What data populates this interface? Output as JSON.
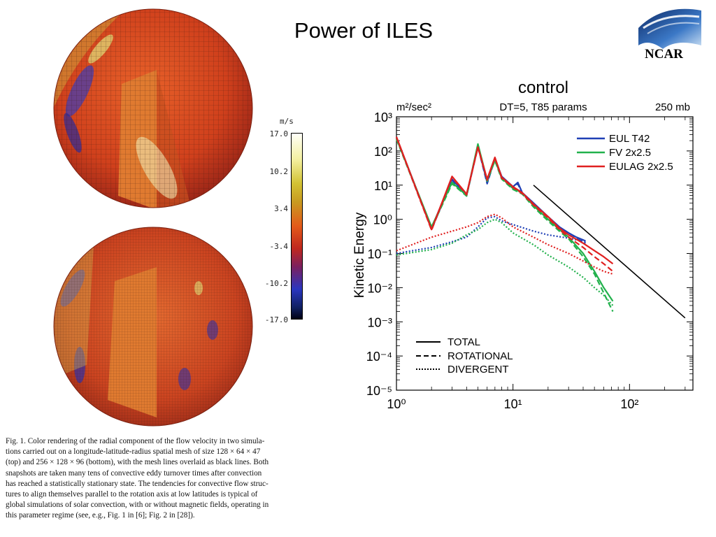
{
  "slide": {
    "title": "Power of ILES",
    "logo_text": "NCAR"
  },
  "colorbar": {
    "unit": "m/s",
    "ticks": [
      "17.0",
      "10.2",
      "3.4",
      "-3.4",
      "-10.2",
      "-17.0"
    ]
  },
  "caption": {
    "lines": [
      "Fig. 1. Color rendering of the radial component of the flow velocity in two simula-",
      "tions carried out on a longitude-latitude-radius spatial mesh of size 128 × 64 × 47",
      "(top) and 256 × 128 × 96 (bottom), with the mesh lines overlaid as black lines. Both",
      "snapshots are taken many tens of convective eddy turnover times after convection",
      "has reached a statistically stationary state. The tendencies for convective flow struc-",
      "tures to align themselves parallel to the rotation axis at low latitudes is typical of",
      "global simulations of solar convection, with or without magnetic fields, operating in",
      "this parameter regime (see, e.g., Fig. 1 in [6]; Fig. 2 in [28])."
    ]
  },
  "chart_data": {
    "type": "line",
    "title": "control",
    "subtitle_left": "m²/sec²",
    "subtitle_center": "DT=5, T85 params",
    "subtitle_right": "250 mb",
    "ylabel": "Kinetic Energy",
    "xscale": "log",
    "yscale": "log",
    "xlim": [
      1,
      350
    ],
    "ylim": [
      1e-05,
      1000
    ],
    "x_tick_labels": [
      "10⁰",
      "10¹",
      "10²"
    ],
    "y_tick_labels": [
      "10⁻⁵",
      "10⁻⁴",
      "10⁻³",
      "10⁻²",
      "10⁻¹",
      "10⁰",
      "10¹",
      "10²",
      "10³"
    ],
    "legend_colors": [
      {
        "name": "EUL T42",
        "color": "#1f3fb5"
      },
      {
        "name": "FV 2x2.5",
        "color": "#22b14c"
      },
      {
        "name": "EULAG 2x2.5",
        "color": "#e02020"
      }
    ],
    "legend_styles": [
      {
        "name": "TOTAL",
        "dash": "solid"
      },
      {
        "name": "ROTATIONAL",
        "dash": "dashed"
      },
      {
        "name": "DIVERGENT",
        "dash": "dotted"
      }
    ],
    "series": [
      {
        "model": "EUL T42",
        "component": "TOTAL",
        "color": "#1f3fb5",
        "dash": "solid",
        "x": [
          1,
          2,
          3,
          4,
          5,
          6,
          7,
          8,
          10,
          11,
          12,
          15,
          20,
          25,
          30,
          35,
          40,
          42
        ],
        "y": [
          250,
          0.55,
          15,
          5,
          140,
          12,
          60,
          18,
          9,
          12,
          6,
          3,
          1.2,
          0.6,
          0.4,
          0.3,
          0.25,
          0.23
        ]
      },
      {
        "model": "EUL T42",
        "component": "ROTATIONAL",
        "color": "#1f3fb5",
        "dash": "dashed",
        "x": [
          1,
          2,
          3,
          4,
          5,
          6,
          7,
          8,
          10,
          11,
          12,
          15,
          20,
          25,
          30,
          35,
          40,
          42
        ],
        "y": [
          240,
          0.5,
          14,
          4.8,
          135,
          11,
          58,
          17,
          8.5,
          11,
          5.5,
          2.8,
          1.1,
          0.55,
          0.35,
          0.27,
          0.22,
          0.2
        ]
      },
      {
        "model": "EUL T42",
        "component": "DIVERGENT",
        "color": "#1f3fb5",
        "dash": "dotted",
        "x": [
          1,
          2,
          3,
          4,
          5,
          6,
          7,
          8,
          10,
          15,
          20,
          30,
          42
        ],
        "y": [
          0.1,
          0.15,
          0.22,
          0.3,
          0.6,
          1.1,
          1.2,
          0.9,
          0.7,
          0.45,
          0.35,
          0.28,
          0.22
        ]
      },
      {
        "model": "FV 2x2.5",
        "component": "TOTAL",
        "color": "#22b14c",
        "dash": "solid",
        "x": [
          1,
          2,
          3,
          4,
          5,
          6,
          7,
          8,
          10,
          12,
          15,
          20,
          25,
          30,
          40,
          50,
          60,
          72
        ],
        "y": [
          230,
          0.6,
          12,
          5,
          160,
          14,
          55,
          16,
          8,
          6,
          2.5,
          1,
          0.5,
          0.3,
          0.1,
          0.03,
          0.01,
          0.004
        ]
      },
      {
        "model": "FV 2x2.5",
        "component": "ROTATIONAL",
        "color": "#22b14c",
        "dash": "dashed",
        "x": [
          1,
          2,
          3,
          4,
          5,
          6,
          7,
          8,
          10,
          12,
          15,
          20,
          25,
          30,
          40,
          50,
          60,
          72
        ],
        "y": [
          220,
          0.55,
          11,
          4.8,
          155,
          13,
          52,
          15,
          7.5,
          5.5,
          2.3,
          0.9,
          0.45,
          0.27,
          0.08,
          0.025,
          0.007,
          0.002
        ]
      },
      {
        "model": "FV 2x2.5",
        "component": "DIVERGENT",
        "color": "#22b14c",
        "dash": "dotted",
        "x": [
          1,
          2,
          3,
          4,
          5,
          6,
          7,
          8,
          10,
          15,
          20,
          30,
          40,
          50,
          60,
          72
        ],
        "y": [
          0.09,
          0.13,
          0.2,
          0.35,
          0.5,
          0.8,
          1.0,
          0.8,
          0.4,
          0.18,
          0.09,
          0.04,
          0.02,
          0.01,
          0.006,
          0.003
        ]
      },
      {
        "model": "EULAG 2x2.5",
        "component": "TOTAL",
        "color": "#e02020",
        "dash": "solid",
        "x": [
          1,
          2,
          3,
          4,
          5,
          6,
          7,
          8,
          10,
          12,
          15,
          20,
          25,
          30,
          40,
          50,
          60,
          72
        ],
        "y": [
          260,
          0.5,
          18,
          5.5,
          130,
          15,
          65,
          17,
          9,
          6,
          2.8,
          1.2,
          0.55,
          0.35,
          0.2,
          0.12,
          0.08,
          0.05
        ]
      },
      {
        "model": "EULAG 2x2.5",
        "component": "ROTATIONAL",
        "color": "#e02020",
        "dash": "dashed",
        "x": [
          1,
          2,
          3,
          4,
          5,
          6,
          7,
          8,
          10,
          12,
          15,
          20,
          25,
          30,
          40,
          50,
          60,
          72
        ],
        "y": [
          250,
          0.48,
          17,
          5.2,
          125,
          14,
          62,
          16,
          8.5,
          5.7,
          2.6,
          1.1,
          0.5,
          0.3,
          0.15,
          0.08,
          0.05,
          0.03
        ]
      },
      {
        "model": "EULAG 2x2.5",
        "component": "DIVERGENT",
        "color": "#e02020",
        "dash": "dotted",
        "x": [
          1,
          2,
          3,
          4,
          5,
          6,
          7,
          8,
          10,
          15,
          20,
          30,
          40,
          50,
          60,
          72
        ],
        "y": [
          0.12,
          0.3,
          0.45,
          0.6,
          0.8,
          1.2,
          1.4,
          1.1,
          0.6,
          0.3,
          0.18,
          0.1,
          0.06,
          0.04,
          0.03,
          0.025
        ]
      },
      {
        "model": "",
        "component": "reference slope",
        "color": "#000000",
        "dash": "solid",
        "x": [
          15,
          300
        ],
        "y": [
          10,
          0.0013
        ]
      }
    ]
  }
}
